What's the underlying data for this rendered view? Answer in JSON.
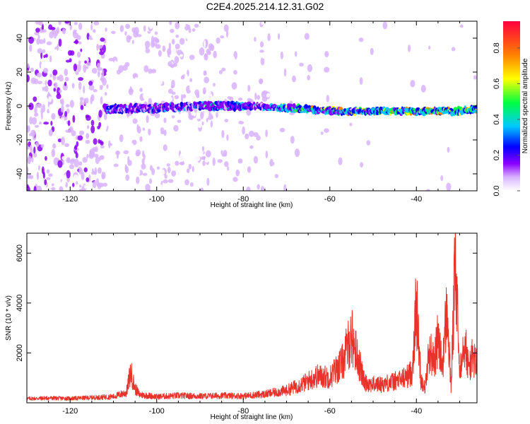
{
  "title": "C2E4.2025.214.12.31.G02",
  "colors": {
    "snr_line": "#e8322a",
    "scale": [
      "#ffffff",
      "#8b00ff",
      "#0000ff",
      "#00c8ff",
      "#00ff40",
      "#ffff00",
      "#ff8000",
      "#ff0040"
    ]
  },
  "chart_data": [
    {
      "type": "heatmap",
      "xlabel": "Height of straight line (km)",
      "ylabel": "Frequency (Hz)",
      "xlim": [
        -130,
        -26
      ],
      "ylim": [
        -50,
        50
      ],
      "xticks": [
        -120,
        -100,
        -80,
        -60,
        -40
      ],
      "xtick_labels": [
        "-120",
        "-100",
        "-80",
        "-60",
        "-40"
      ],
      "yticks": [
        -40,
        -20,
        0,
        20,
        40
      ],
      "ytick_labels": [
        "-40",
        "-20",
        "0",
        "20",
        "40"
      ],
      "colorbar": {
        "label": "Normalized spectral amplitude",
        "range": [
          0,
          0.95
        ],
        "ticks": [
          0,
          0.2,
          0.4,
          0.6,
          0.8
        ],
        "tick_labels": [
          "0.0",
          "0.2",
          "0.4",
          "0.6",
          "0.8"
        ],
        "colormap": "rainbow"
      },
      "ridge": {
        "x": [
          -112,
          -100,
          -90,
          -80,
          -70,
          -60,
          -50,
          -40,
          -30,
          -26
        ],
        "freq_hz": [
          -2,
          -1,
          0,
          0,
          -1,
          -3,
          -3,
          -3,
          -3,
          -2
        ]
      }
    },
    {
      "type": "line",
      "xlabel": "Height of straight line (km)",
      "ylabel": "SNR (10 * v/v)",
      "xlim": [
        -130,
        -26
      ],
      "ylim": [
        0,
        6800
      ],
      "xticks": [
        -120,
        -100,
        -80,
        -60,
        -40
      ],
      "xtick_labels": [
        "-120",
        "-100",
        "-80",
        "-60",
        "-40"
      ],
      "yticks": [
        2000,
        4000,
        6000
      ],
      "ytick_labels": [
        "2000",
        "4000",
        "6000"
      ],
      "grid": false,
      "series": [
        {
          "x": [
            -130,
            -125,
            -120,
            -115,
            -110,
            -107,
            -106,
            -105,
            -104,
            -100,
            -95,
            -90,
            -85,
            -80,
            -75,
            -70,
            -66,
            -63,
            -60,
            -57,
            -55,
            -54,
            -52,
            -50,
            -48,
            -46,
            -44,
            -42,
            -41,
            -40,
            -39,
            -38,
            -37,
            -36,
            -35,
            -34,
            -33,
            -32,
            -31,
            -30,
            -29,
            -28,
            -27,
            -26
          ],
          "y": [
            200,
            230,
            210,
            250,
            300,
            500,
            1500,
            700,
            400,
            300,
            350,
            320,
            350,
            330,
            420,
            600,
            950,
            1300,
            1250,
            2000,
            3300,
            2500,
            1000,
            900,
            900,
            1000,
            1100,
            1300,
            1500,
            4900,
            1200,
            700,
            2600,
            2000,
            3100,
            1700,
            4500,
            800,
            6800,
            1500,
            3300,
            1700,
            2200,
            1900
          ]
        }
      ]
    }
  ]
}
